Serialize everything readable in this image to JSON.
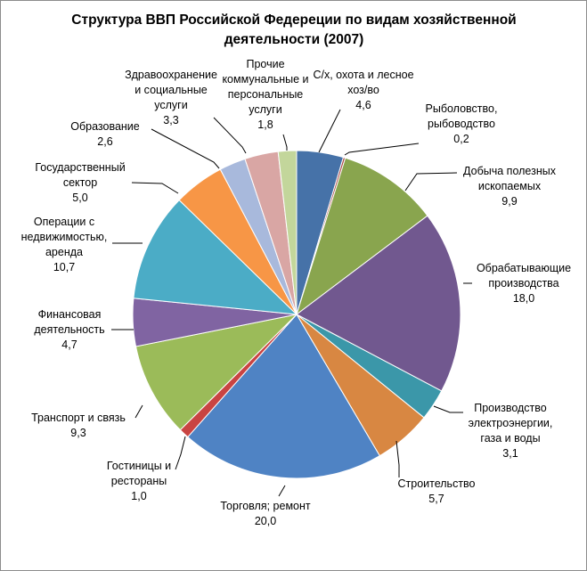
{
  "chart_data": {
    "type": "pie",
    "title": "Структура ВВП Российской Федереции по видам хозяйственной деятельности  (2007)",
    "slices": [
      {
        "label": "С/х, охота и лесное хоз/во",
        "value": 4.6,
        "value_text": "4,6",
        "color": "#4672a8"
      },
      {
        "label": "Рыболовство, рыбоводство",
        "value": 0.2,
        "value_text": "0,2",
        "color": "#aa4643"
      },
      {
        "label": "Добыча полезных ископаемых",
        "value": 9.9,
        "value_text": "9,9",
        "color": "#89a54e"
      },
      {
        "label": "Обрабатывающие производства",
        "value": 18.0,
        "value_text": "18,0",
        "color": "#71588f"
      },
      {
        "label": "Производство электроэнергии, газа и воды",
        "value": 3.1,
        "value_text": "3,1",
        "color": "#3b97a9"
      },
      {
        "label": "Строительство",
        "value": 5.7,
        "value_text": "5,7",
        "color": "#d88742"
      },
      {
        "label": "Торговля; ремонт",
        "value": 20.0,
        "value_text": "20,0",
        "color": "#4f83c4"
      },
      {
        "label": "Гостиницы и рестораны",
        "value": 1.0,
        "value_text": "1,0",
        "color": "#c94442"
      },
      {
        "label": "Транспорт и связь",
        "value": 9.3,
        "value_text": "9,3",
        "color": "#9bbb59"
      },
      {
        "label": "Финансовая деятельность",
        "value": 4.7,
        "value_text": "4,7",
        "color": "#8064a2"
      },
      {
        "label": "Операции с недвижимостью, аренда",
        "value": 10.7,
        "value_text": "10,7",
        "color": "#4bacc6"
      },
      {
        "label": "Государственный сектор",
        "value": 5.0,
        "value_text": "5,0",
        "color": "#f79646"
      },
      {
        "label": "Образование",
        "value": 2.6,
        "value_text": "2,6",
        "color": "#a8b9dc"
      },
      {
        "label": "Здравоохранение и социальные услуги",
        "value": 3.3,
        "value_text": "3,3",
        "color": "#d9a6a4"
      },
      {
        "label": "Прочие коммунальные и персональные услуги",
        "value": 1.8,
        "value_text": "1,8",
        "color": "#c3d69b"
      }
    ]
  }
}
